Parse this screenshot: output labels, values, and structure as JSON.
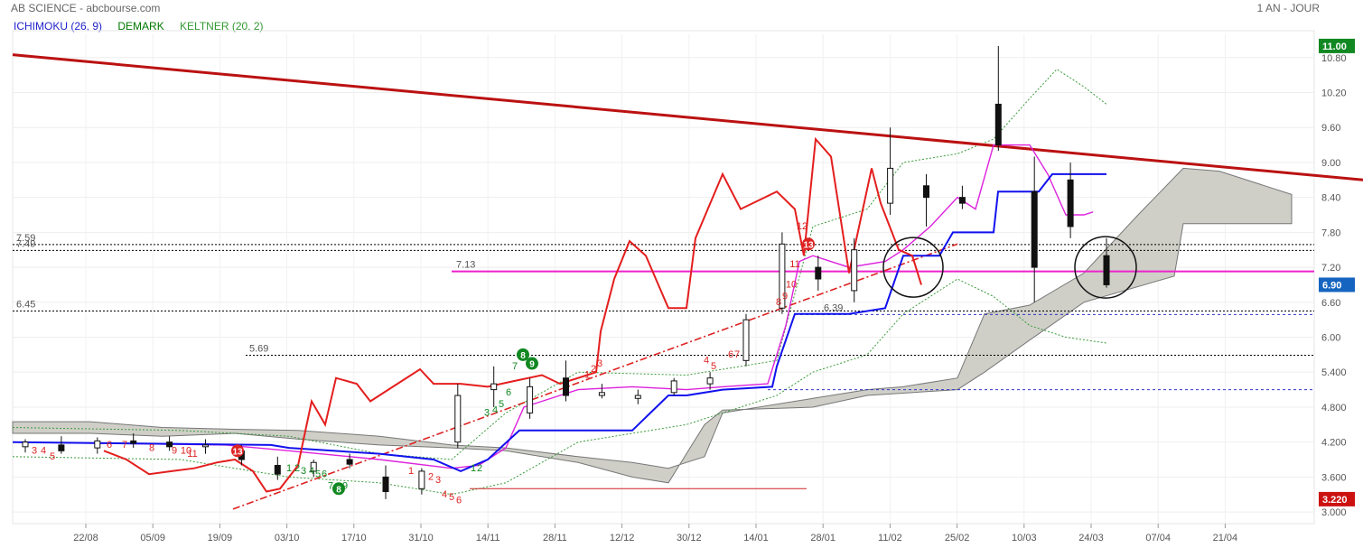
{
  "header": {
    "title": "AB SCIENCE - abcbourse.com",
    "period": "1 AN - JOUR"
  },
  "legend": [
    {
      "label": "ICHIMOKU (26, 9)",
      "color": "#2222cc"
    },
    {
      "label": "DEMARK",
      "color": "#007700"
    },
    {
      "label": "KELTNER (20, 2)",
      "color": "#339933"
    }
  ],
  "badges": {
    "high": "11.00",
    "last": "6.90",
    "low": "3.220"
  },
  "chart_data": {
    "type": "candlestick",
    "ylim": [
      2.8,
      11.2
    ],
    "y_ticks": [
      "3.000",
      "3.600",
      "4.200",
      "4.800",
      "5.400",
      "6.00",
      "6.60",
      "7.20",
      "7.80",
      "8.40",
      "9.00",
      "9.60",
      "10.20",
      "10.80"
    ],
    "x_ticks": [
      "22/08",
      "05/09",
      "19/09",
      "03/10",
      "17/10",
      "31/10",
      "14/11",
      "28/11",
      "12/12",
      "30/12",
      "14/01",
      "28/01",
      "11/02",
      "25/02",
      "10/03",
      "24/03",
      "07/04",
      "21/04"
    ],
    "levels": [
      {
        "label": "7.59",
        "value": 7.59
      },
      {
        "label": "7.49",
        "value": 7.49
      },
      {
        "label": "7.13",
        "value": 7.13
      },
      {
        "label": "6.45",
        "value": 6.45
      },
      {
        "label": "6.39",
        "value": 6.39
      },
      {
        "label": "5.69",
        "value": 5.69
      }
    ],
    "ohlc": [
      {
        "d": "22/08",
        "o": 4.12,
        "h": 4.25,
        "l": 4.02,
        "c": 4.2
      },
      {
        "d": "29/08",
        "o": 4.15,
        "h": 4.3,
        "l": 4.0,
        "c": 4.05
      },
      {
        "d": "05/09",
        "o": 4.1,
        "h": 4.28,
        "l": 4.0,
        "c": 4.22
      },
      {
        "d": "12/09",
        "o": 4.22,
        "h": 4.35,
        "l": 4.1,
        "c": 4.18
      },
      {
        "d": "19/09",
        "o": 4.2,
        "h": 4.3,
        "l": 4.05,
        "c": 4.12
      },
      {
        "d": "26/09",
        "o": 4.12,
        "h": 4.25,
        "l": 4.0,
        "c": 4.15
      },
      {
        "d": "03/10",
        "o": 4.05,
        "h": 4.15,
        "l": 3.8,
        "c": 3.9
      },
      {
        "d": "10/10",
        "o": 3.8,
        "h": 3.95,
        "l": 3.55,
        "c": 3.65
      },
      {
        "d": "17/10",
        "o": 3.7,
        "h": 3.9,
        "l": 3.6,
        "c": 3.85
      },
      {
        "d": "24/10",
        "o": 3.9,
        "h": 4.0,
        "l": 3.75,
        "c": 3.82
      },
      {
        "d": "31/10",
        "o": 3.6,
        "h": 3.8,
        "l": 3.22,
        "c": 3.35
      },
      {
        "d": "07/11",
        "o": 3.4,
        "h": 3.75,
        "l": 3.3,
        "c": 3.7
      },
      {
        "d": "14/11",
        "o": 4.2,
        "h": 5.2,
        "l": 4.1,
        "c": 5.0
      },
      {
        "d": "21/11",
        "o": 5.1,
        "h": 5.5,
        "l": 4.8,
        "c": 5.2
      },
      {
        "d": "28/11",
        "o": 4.7,
        "h": 5.3,
        "l": 4.6,
        "c": 5.15
      },
      {
        "d": "05/12",
        "o": 5.3,
        "h": 5.6,
        "l": 4.9,
        "c": 5.0
      },
      {
        "d": "12/12",
        "o": 5.0,
        "h": 5.2,
        "l": 4.95,
        "c": 5.05
      },
      {
        "d": "19/12",
        "o": 4.95,
        "h": 5.1,
        "l": 4.85,
        "c": 5.0
      },
      {
        "d": "26/12",
        "o": 5.05,
        "h": 5.3,
        "l": 5.0,
        "c": 5.25
      },
      {
        "d": "30/12",
        "o": 5.2,
        "h": 5.4,
        "l": 5.1,
        "c": 5.3
      },
      {
        "d": "07/01",
        "o": 5.6,
        "h": 6.4,
        "l": 5.5,
        "c": 6.3
      },
      {
        "d": "14/01",
        "o": 6.5,
        "h": 7.8,
        "l": 6.4,
        "c": 7.6
      },
      {
        "d": "21/01",
        "o": 7.2,
        "h": 7.4,
        "l": 6.8,
        "c": 7.0
      },
      {
        "d": "28/01",
        "o": 6.8,
        "h": 7.7,
        "l": 6.6,
        "c": 7.5
      },
      {
        "d": "04/02",
        "o": 8.3,
        "h": 9.6,
        "l": 8.1,
        "c": 8.9
      },
      {
        "d": "11/02",
        "o": 8.6,
        "h": 8.8,
        "l": 7.9,
        "c": 8.4
      },
      {
        "d": "18/02",
        "o": 8.4,
        "h": 8.6,
        "l": 8.2,
        "c": 8.3
      },
      {
        "d": "25/02",
        "o": 10.0,
        "h": 11.0,
        "l": 9.2,
        "c": 9.3
      },
      {
        "d": "04/03",
        "o": 8.5,
        "h": 9.1,
        "l": 6.6,
        "c": 7.2
      },
      {
        "d": "10/03",
        "o": 8.7,
        "h": 9.0,
        "l": 7.7,
        "c": 7.9
      },
      {
        "d": "14/03",
        "o": 7.4,
        "h": 7.7,
        "l": 6.85,
        "c": 6.9
      }
    ]
  },
  "annotations": {
    "demark_red": [
      "3",
      "4",
      "5",
      "6",
      "7",
      "8",
      "9",
      "10",
      "11",
      "13",
      "1",
      "2",
      "3",
      "4",
      "5",
      "6",
      "1",
      "2",
      "3",
      "4",
      "5",
      "6",
      "7",
      "8",
      "9",
      "10",
      "11",
      "12",
      "13"
    ],
    "demark_green": [
      "1",
      "2",
      "3",
      "4",
      "5",
      "6",
      "7",
      "8",
      "9",
      "1",
      "2",
      "3",
      "4",
      "5",
      "6",
      "7",
      "8",
      "9"
    ]
  }
}
